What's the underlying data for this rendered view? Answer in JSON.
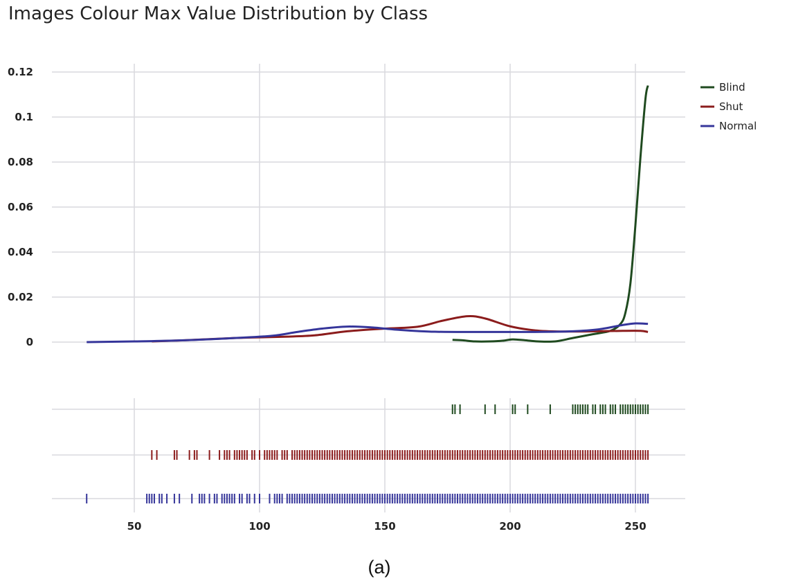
{
  "chart_data": {
    "type": "line",
    "title": "Images Colour Max Value Distribution by Class",
    "caption": "(a)",
    "xlabel": "",
    "ylabel": "",
    "xlim": [
      17,
      270
    ],
    "ylim": [
      0,
      0.12
    ],
    "x_ticks": [
      50,
      100,
      150,
      200,
      250
    ],
    "y_ticks": [
      0,
      0.02,
      0.04,
      0.06,
      0.08,
      0.1,
      0.12
    ],
    "y_tick_labels": [
      "0",
      "0.02",
      "0.04",
      "0.06",
      "0.08",
      "0.1",
      "0.12"
    ],
    "grid": true,
    "legend_position": "top-right",
    "series": [
      {
        "name": "Blind",
        "color": "#1f4a1f",
        "kde": [
          [
            177,
            0.001
          ],
          [
            181,
            0.0008
          ],
          [
            186,
            0.0003
          ],
          [
            192,
            0.0003
          ],
          [
            197,
            0.0006
          ],
          [
            201,
            0.0012
          ],
          [
            206,
            0.0008
          ],
          [
            211,
            0.0003
          ],
          [
            218,
            0.0003
          ],
          [
            225,
            0.0018
          ],
          [
            233,
            0.0035
          ],
          [
            240,
            0.005
          ],
          [
            244,
            0.008
          ],
          [
            246,
            0.013
          ],
          [
            248,
            0.026
          ],
          [
            250,
            0.052
          ],
          [
            252,
            0.082
          ],
          [
            254,
            0.108
          ],
          [
            255,
            0.114
          ]
        ],
        "rug": [
          177,
          178,
          180,
          190,
          194,
          201,
          202,
          207,
          216,
          225,
          226,
          227,
          228,
          229,
          230,
          231,
          233,
          234,
          236,
          237,
          238,
          240,
          241,
          242,
          244,
          245,
          246,
          247,
          248,
          249,
          250,
          251,
          252,
          253,
          254,
          255
        ]
      },
      {
        "name": "Shut",
        "color": "#8b1c1c",
        "kde": [
          [
            57,
            0.0003
          ],
          [
            70,
            0.0008
          ],
          [
            90,
            0.0018
          ],
          [
            110,
            0.0024
          ],
          [
            122,
            0.003
          ],
          [
            135,
            0.0048
          ],
          [
            150,
            0.006
          ],
          [
            163,
            0.0068
          ],
          [
            173,
            0.0095
          ],
          [
            183,
            0.0115
          ],
          [
            190,
            0.0105
          ],
          [
            200,
            0.007
          ],
          [
            210,
            0.0052
          ],
          [
            220,
            0.0047
          ],
          [
            235,
            0.0048
          ],
          [
            245,
            0.005
          ],
          [
            252,
            0.005
          ],
          [
            255,
            0.0045
          ]
        ],
        "rug": [
          57,
          59,
          66,
          67,
          72,
          74,
          75,
          80,
          84,
          86,
          87,
          88,
          90,
          91,
          92,
          93,
          94,
          95,
          97,
          98,
          100,
          102,
          103,
          104,
          105,
          106,
          107,
          109,
          110,
          111,
          113,
          114,
          115,
          116,
          117,
          118,
          119,
          120,
          121,
          122,
          123,
          124,
          125,
          126,
          127,
          128,
          129,
          130,
          131,
          132,
          133,
          134,
          135,
          136,
          137,
          138,
          139,
          140,
          141,
          142,
          143,
          144,
          145,
          146,
          147,
          148,
          149,
          150,
          151,
          152,
          153,
          154,
          155,
          156,
          157,
          158,
          159,
          160,
          161,
          162,
          163,
          164,
          165,
          166,
          167,
          168,
          169,
          170,
          171,
          172,
          173,
          174,
          175,
          176,
          177,
          178,
          179,
          180,
          181,
          182,
          183,
          184,
          185,
          186,
          187,
          188,
          189,
          190,
          191,
          192,
          193,
          194,
          195,
          196,
          197,
          198,
          199,
          200,
          201,
          202,
          203,
          204,
          205,
          206,
          207,
          208,
          209,
          210,
          211,
          212,
          213,
          214,
          215,
          216,
          217,
          218,
          219,
          220,
          221,
          222,
          223,
          224,
          225,
          226,
          227,
          228,
          229,
          230,
          231,
          232,
          233,
          234,
          235,
          236,
          237,
          238,
          239,
          240,
          241,
          242,
          243,
          244,
          245,
          246,
          247,
          248,
          249,
          250,
          251,
          252,
          253,
          254,
          255
        ]
      },
      {
        "name": "Normal",
        "color": "#35359a",
        "kde": [
          [
            31,
            0
          ],
          [
            50,
            0.0003
          ],
          [
            70,
            0.0008
          ],
          [
            90,
            0.0018
          ],
          [
            105,
            0.0028
          ],
          [
            115,
            0.0045
          ],
          [
            125,
            0.006
          ],
          [
            135,
            0.0069
          ],
          [
            145,
            0.0065
          ],
          [
            155,
            0.0055
          ],
          [
            170,
            0.0046
          ],
          [
            190,
            0.0045
          ],
          [
            210,
            0.0045
          ],
          [
            225,
            0.0048
          ],
          [
            235,
            0.0056
          ],
          [
            245,
            0.0076
          ],
          [
            250,
            0.0083
          ],
          [
            255,
            0.0081
          ]
        ],
        "rug": [
          31,
          55,
          56,
          57,
          58,
          60,
          61,
          63,
          66,
          68,
          73,
          76,
          77,
          78,
          80,
          82,
          83,
          85,
          86,
          87,
          88,
          89,
          90,
          92,
          93,
          95,
          96,
          98,
          100,
          104,
          106,
          107,
          108,
          109,
          111,
          112,
          113,
          114,
          115,
          116,
          117,
          118,
          119,
          120,
          121,
          122,
          123,
          124,
          125,
          126,
          127,
          128,
          129,
          130,
          131,
          132,
          133,
          134,
          135,
          136,
          137,
          138,
          139,
          140,
          141,
          142,
          143,
          144,
          145,
          146,
          147,
          148,
          149,
          150,
          151,
          152,
          153,
          154,
          155,
          156,
          157,
          158,
          159,
          160,
          161,
          162,
          163,
          164,
          165,
          166,
          167,
          168,
          169,
          170,
          171,
          172,
          173,
          174,
          175,
          176,
          177,
          178,
          179,
          180,
          181,
          182,
          183,
          184,
          185,
          186,
          187,
          188,
          189,
          190,
          191,
          192,
          193,
          194,
          195,
          196,
          197,
          198,
          199,
          200,
          201,
          202,
          203,
          204,
          205,
          206,
          207,
          208,
          209,
          210,
          211,
          212,
          213,
          214,
          215,
          216,
          217,
          218,
          219,
          220,
          221,
          222,
          223,
          224,
          225,
          226,
          227,
          228,
          229,
          230,
          231,
          232,
          233,
          234,
          235,
          236,
          237,
          238,
          239,
          240,
          241,
          242,
          243,
          244,
          245,
          246,
          247,
          248,
          249,
          250,
          251,
          252,
          253,
          254,
          255
        ]
      }
    ]
  }
}
